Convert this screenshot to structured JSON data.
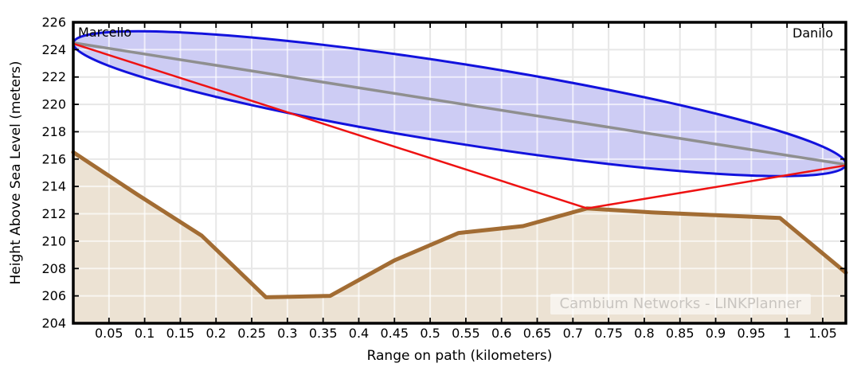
{
  "chart_data": {
    "type": "area",
    "title": "",
    "xlabel": "Range on path (kilometers)",
    "ylabel": "Height Above Sea Level (meters)",
    "watermark": "Cambium Networks - LINKPlanner",
    "xlim": [
      0,
      1.0824
    ],
    "ylim": [
      204,
      226
    ],
    "x_ticks": [
      0.05,
      0.1,
      0.15,
      0.2,
      0.25,
      0.3,
      0.35,
      0.4,
      0.45,
      0.5,
      0.55,
      0.6,
      0.65,
      0.7,
      0.75,
      0.8,
      0.85,
      0.9,
      0.95,
      1,
      1.05
    ],
    "y_ticks": [
      204,
      206,
      208,
      210,
      212,
      214,
      216,
      218,
      220,
      222,
      224,
      226
    ],
    "grid": "on",
    "endpoints": {
      "left": {
        "label": "Marcello",
        "km": 0,
        "height_m": 224.5
      },
      "right": {
        "label": "Danilo",
        "km": 1.0824,
        "height_m": 215.6
      }
    },
    "terrain_profile": {
      "x_km": [
        0,
        0.09,
        0.18,
        0.27,
        0.36,
        0.45,
        0.54,
        0.63,
        0.72,
        0.81,
        0.9,
        0.99,
        1.0824
      ],
      "height_m": [
        216.5,
        213.4,
        210.4,
        205.9,
        206.0,
        208.6,
        210.6,
        211.1,
        212.4,
        212.1,
        211.9,
        211.7,
        207.7
      ]
    },
    "los_line": {
      "from_km": 0,
      "from_m": 224.5,
      "to_km": 1.0824,
      "to_m": 215.6
    },
    "fresnel_ellipse": {
      "semi_minor_m": 2.9
    },
    "obstruction_rays": {
      "vertex_km": 0.72,
      "vertex_m": 212.4
    },
    "colors": {
      "terrain_line": "#a26c33",
      "terrain_fill": "#ece2d3",
      "fresnel_stroke": "#1212dd",
      "fresnel_fill": "#cdccf4",
      "los": "#8f8f8f",
      "ray": "#ee1212",
      "grid": "#e7e7e7",
      "grid_over_fill": "rgba(255,255,255,0.65)",
      "axis": "#000000"
    }
  }
}
